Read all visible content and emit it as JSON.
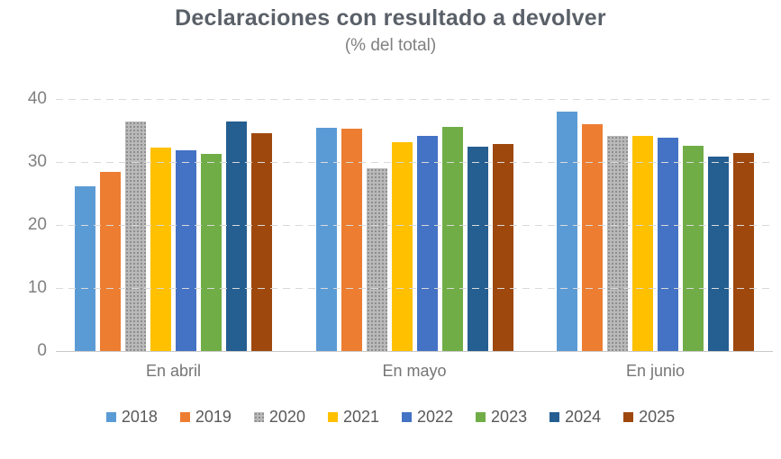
{
  "title": "Declaraciones con resultado a devolver",
  "subtitle": "(% del total)",
  "chart_data": {
    "type": "bar",
    "title": "Declaraciones con resultado a devolver",
    "subtitle": "(% del total)",
    "categories": [
      "En abril",
      "En mayo",
      "En junio"
    ],
    "series": [
      {
        "name": "2018",
        "color": "#5B9BD5",
        "pattern": "solid",
        "values": [
          26.2,
          35.5,
          38.0
        ]
      },
      {
        "name": "2019",
        "color": "#ED7D31",
        "pattern": "solid",
        "values": [
          28.5,
          35.3,
          36.0
        ]
      },
      {
        "name": "2020",
        "color": "#ACACAC",
        "pattern": "dots",
        "values": [
          36.4,
          29.0,
          34.2
        ]
      },
      {
        "name": "2021",
        "color": "#FFC000",
        "pattern": "solid",
        "values": [
          32.3,
          33.2,
          34.1
        ]
      },
      {
        "name": "2022",
        "color": "#4472C4",
        "pattern": "solid",
        "values": [
          31.8,
          34.2,
          33.9
        ]
      },
      {
        "name": "2023",
        "color": "#70AD47",
        "pattern": "solid",
        "values": [
          31.3,
          35.6,
          32.6
        ]
      },
      {
        "name": "2024",
        "color": "#255E91",
        "pattern": "solid",
        "values": [
          36.5,
          32.4,
          30.8
        ]
      },
      {
        "name": "2025",
        "color": "#9E480E",
        "pattern": "solid",
        "values": [
          34.6,
          32.9,
          31.5
        ]
      }
    ],
    "xlabel": "",
    "ylabel": "",
    "ylim": [
      0,
      40
    ],
    "yticks": [
      0,
      10,
      20,
      30,
      40
    ],
    "ytick_labels": [
      "0",
      "10",
      "20",
      "30",
      "40"
    ],
    "grid": "horizontal-dashed",
    "gridline_color": "#D9D9D9",
    "axis_line_color": "#C9C9C9",
    "legend_position": "bottom",
    "legend_entries": [
      "2018",
      "2019",
      "2020",
      "2021",
      "2022",
      "2023",
      "2024",
      "2025"
    ]
  }
}
